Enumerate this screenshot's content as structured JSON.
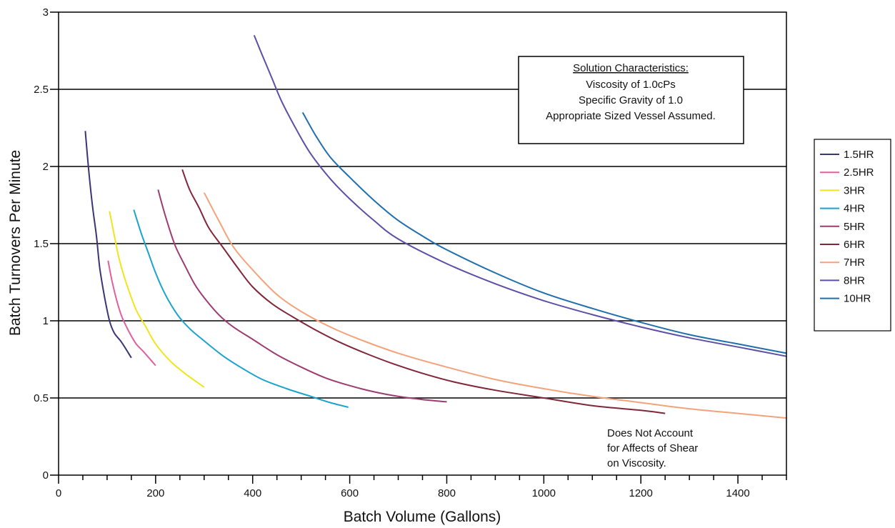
{
  "chart_data": {
    "type": "line",
    "xlabel": "Batch Volume (Gallons)",
    "ylabel": "Batch Turnovers Per Minute",
    "xlim": [
      0,
      1500
    ],
    "ylim": [
      0,
      3
    ],
    "x_ticks": [
      "0",
      "200",
      "400",
      "600",
      "800",
      "1000",
      "1200",
      "1400"
    ],
    "y_ticks": [
      "0",
      "0.5",
      "1",
      "1.5",
      "2",
      "2.5",
      "3"
    ],
    "grid": "horizontal",
    "legend_position": "right",
    "series": [
      {
        "name": "1.5HR",
        "color": "#3a3576",
        "x": [
          55,
          62,
          70,
          78,
          85,
          95,
          105,
          115,
          130,
          150
        ],
        "y": [
          2.23,
          1.98,
          1.74,
          1.55,
          1.34,
          1.15,
          1.0,
          0.92,
          0.86,
          0.76
        ]
      },
      {
        "name": "2.5HR",
        "color": "#e0609c",
        "x": [
          102,
          110,
          120,
          130,
          145,
          160,
          175,
          200
        ],
        "y": [
          1.39,
          1.26,
          1.13,
          1.03,
          0.93,
          0.85,
          0.8,
          0.71
        ]
      },
      {
        "name": "3HR",
        "color": "#f2e41c",
        "x": [
          105,
          115,
          125,
          140,
          160,
          180,
          200,
          230,
          260,
          300
        ],
        "y": [
          1.71,
          1.55,
          1.4,
          1.24,
          1.07,
          0.96,
          0.85,
          0.74,
          0.66,
          0.57
        ]
      },
      {
        "name": "4HR",
        "color": "#1aa3cc",
        "x": [
          155,
          170,
          185,
          200,
          220,
          245,
          270,
          300,
          340,
          380,
          420,
          470,
          520,
          560,
          597
        ],
        "y": [
          1.72,
          1.57,
          1.44,
          1.31,
          1.17,
          1.04,
          0.95,
          0.87,
          0.77,
          0.69,
          0.62,
          0.56,
          0.51,
          0.47,
          0.44
        ]
      },
      {
        "name": "5HR",
        "color": "#9e3c72",
        "x": [
          205,
          220,
          240,
          260,
          280,
          300,
          330,
          360,
          400,
          450,
          500,
          550,
          600,
          650,
          700,
          750,
          800
        ],
        "y": [
          1.85,
          1.68,
          1.49,
          1.36,
          1.24,
          1.15,
          1.04,
          0.96,
          0.88,
          0.78,
          0.7,
          0.63,
          0.58,
          0.54,
          0.51,
          0.49,
          0.475
        ]
      },
      {
        "name": "6HR",
        "color": "#82263a",
        "x": [
          255,
          270,
          290,
          310,
          340,
          370,
          400,
          440,
          480,
          530,
          580,
          640,
          700,
          760,
          820,
          900,
          1000,
          1100,
          1200,
          1250
        ],
        "y": [
          1.98,
          1.85,
          1.73,
          1.6,
          1.47,
          1.34,
          1.22,
          1.11,
          1.03,
          0.94,
          0.86,
          0.78,
          0.71,
          0.65,
          0.6,
          0.55,
          0.5,
          0.45,
          0.42,
          0.4
        ]
      },
      {
        "name": "7HR",
        "color": "#f4a27a",
        "x": [
          300,
          330,
          360,
          400,
          450,
          500,
          560,
          620,
          700,
          800,
          900,
          1000,
          1100,
          1200,
          1300,
          1400,
          1500
        ],
        "y": [
          1.83,
          1.65,
          1.48,
          1.33,
          1.17,
          1.06,
          0.96,
          0.88,
          0.79,
          0.7,
          0.62,
          0.56,
          0.51,
          0.47,
          0.43,
          0.4,
          0.37
        ]
      },
      {
        "name": "8HR",
        "color": "#5d4fa6",
        "x": [
          403,
          420,
          440,
          460,
          490,
          520,
          560,
          600,
          650,
          700,
          800,
          900,
          1000,
          1100,
          1200,
          1300,
          1400,
          1500
        ],
        "y": [
          2.85,
          2.72,
          2.57,
          2.42,
          2.24,
          2.08,
          1.92,
          1.79,
          1.65,
          1.53,
          1.37,
          1.24,
          1.13,
          1.04,
          0.96,
          0.89,
          0.83,
          0.77
        ]
      },
      {
        "name": "10HR",
        "color": "#1f6fae",
        "x": [
          503,
          530,
          560,
          600,
          650,
          700,
          760,
          800,
          900,
          1000,
          1100,
          1200,
          1300,
          1400,
          1500
        ],
        "y": [
          2.35,
          2.2,
          2.06,
          1.93,
          1.78,
          1.65,
          1.53,
          1.46,
          1.31,
          1.18,
          1.08,
          0.99,
          0.91,
          0.85,
          0.79
        ]
      }
    ]
  },
  "annotations": {
    "box_title": "Solution Characteristics:",
    "box_lines": [
      "Viscosity of 1.0cPs",
      "Specific Gravity of 1.0",
      "Appropriate Sized Vessel Assumed."
    ],
    "note_lines": [
      "Does Not Account",
      "for Affects of Shear",
      "on Viscosity."
    ]
  }
}
